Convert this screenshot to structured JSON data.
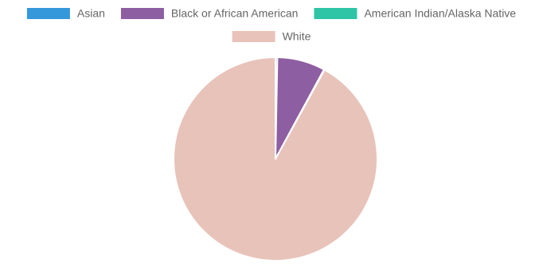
{
  "chart_data": {
    "type": "pie",
    "title": "",
    "legend_position": "top",
    "categories": [
      "Asian",
      "Black or African American",
      "American Indian/Alaska Native",
      "White"
    ],
    "values": [
      0.3,
      7.6,
      0.1,
      92.0
    ],
    "colors": [
      "#3498db",
      "#8e5ea2",
      "#2ec4a6",
      "#e8c3b9"
    ],
    "unit": "percent"
  }
}
